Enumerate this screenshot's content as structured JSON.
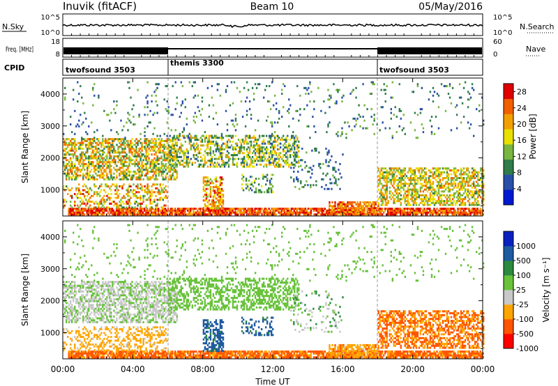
{
  "header": {
    "station": "Inuvik (fitACF)",
    "beam": "Beam 10",
    "date": "05/May/2016"
  },
  "colors": {
    "power": [
      "#0018d0",
      "#2a4fa8",
      "#2f7d4a",
      "#78b640",
      "#e8e000",
      "#f2a000",
      "#f26000",
      "#e00000"
    ],
    "velocity": [
      "#ff0000",
      "#ff5500",
      "#ffa500",
      "#c8c8c8",
      "#68c23a",
      "#2c8a40",
      "#1e5aa0",
      "#0a20c0"
    ]
  },
  "chart_data": [
    {
      "type": "line",
      "panel": "noise",
      "left_label": "N.Sky",
      "right_label": "N.Search",
      "left_ticks": [
        "10^5",
        "10^0"
      ],
      "right_ticks": [
        "10^5",
        "10^0"
      ],
      "x_range": [
        "00:00",
        "24:00"
      ]
    },
    {
      "type": "line",
      "panel": "frequency",
      "left_label": "Freq. [MHz]",
      "right_label": "Nave",
      "left_ticks": [
        18,
        8
      ],
      "right_ticks": [
        60,
        0
      ]
    },
    {
      "type": "table",
      "panel": "cpid",
      "label": "CPID",
      "segments": [
        {
          "name": "twofsound 3503",
          "start_hour": 0,
          "end_hour": 6
        },
        {
          "name": "themis 3300",
          "start_hour": 6,
          "end_hour": 18
        },
        {
          "name": "twofsound 3503",
          "start_hour": 18,
          "end_hour": 24
        }
      ]
    },
    {
      "type": "heatmap",
      "panel": "power",
      "ylabel": "Slant Range [km]",
      "ylim": [
        180,
        4500
      ],
      "yticks": [
        1000,
        2000,
        3000,
        4000
      ],
      "colorbar_label": "Power [dB]",
      "colorbar_ticks": [
        4,
        8,
        12,
        16,
        20,
        24,
        28
      ],
      "colorbar_range": [
        0,
        30
      ]
    },
    {
      "type": "heatmap",
      "panel": "velocity",
      "ylabel": "Slant Range [km]",
      "ylim": [
        180,
        4500
      ],
      "yticks": [
        1000,
        2000,
        3000,
        4000
      ],
      "colorbar_label": "Velocity [m s⁻¹]",
      "colorbar_ticks": [
        "1000",
        "500",
        "100",
        "25",
        "-25",
        "-100",
        "-500",
        "-1000"
      ]
    }
  ],
  "xaxis": {
    "label": "Time UT",
    "ticks": [
      "00:00",
      "04:00",
      "08:00",
      "12:00",
      "16:00",
      "20:00",
      "00:00"
    ]
  }
}
